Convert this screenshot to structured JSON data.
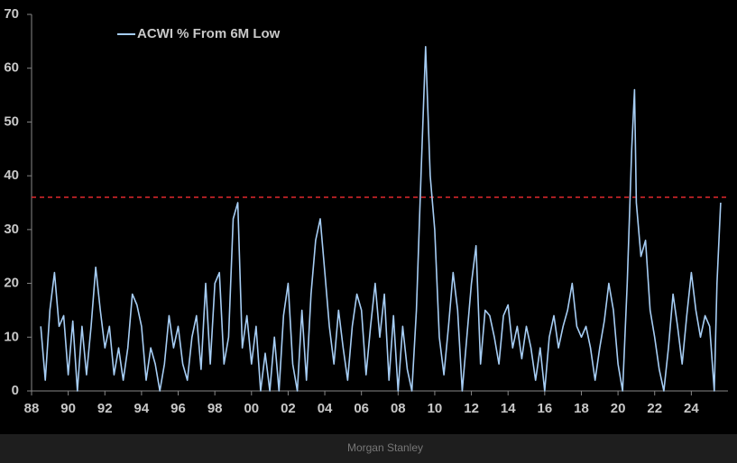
{
  "chart_data": {
    "type": "line",
    "legend": "top-left",
    "threshold": {
      "value": 36,
      "color": "#e0282e"
    },
    "footer": "Morgan Stanley",
    "x": [
      1988.5,
      1988.75,
      1989.0,
      1989.25,
      1989.5,
      1989.75,
      1990.0,
      1990.25,
      1990.5,
      1990.75,
      1991.0,
      1991.25,
      1991.5,
      1991.75,
      1992.0,
      1992.25,
      1992.5,
      1992.75,
      1993.0,
      1993.25,
      1993.5,
      1993.75,
      1994.0,
      1994.25,
      1994.5,
      1994.75,
      1995.0,
      1995.25,
      1995.5,
      1995.75,
      1996.0,
      1996.25,
      1996.5,
      1996.75,
      1997.0,
      1997.25,
      1997.5,
      1997.75,
      1998.0,
      1998.25,
      1998.5,
      1998.75,
      1999.0,
      1999.25,
      1999.5,
      1999.75,
      2000.0,
      2000.25,
      2000.5,
      2000.75,
      2001.0,
      2001.25,
      2001.5,
      2001.75,
      2002.0,
      2002.25,
      2002.5,
      2002.75,
      2003.0,
      2003.25,
      2003.5,
      2003.75,
      2004.0,
      2004.25,
      2004.5,
      2004.75,
      2005.0,
      2005.25,
      2005.5,
      2005.75,
      2006.0,
      2006.25,
      2006.5,
      2006.75,
      2007.0,
      2007.25,
      2007.5,
      2007.75,
      2008.0,
      2008.25,
      2008.5,
      2008.75,
      2009.0,
      2009.25,
      2009.5,
      2009.75,
      2010.0,
      2010.25,
      2010.5,
      2010.75,
      2011.0,
      2011.25,
      2011.5,
      2011.75,
      2012.0,
      2012.25,
      2012.5,
      2012.75,
      2013.0,
      2013.25,
      2013.5,
      2013.75,
      2014.0,
      2014.25,
      2014.5,
      2014.75,
      2015.0,
      2015.25,
      2015.5,
      2015.75,
      2016.0,
      2016.25,
      2016.5,
      2016.75,
      2017.0,
      2017.25,
      2017.5,
      2017.75,
      2018.0,
      2018.25,
      2018.5,
      2018.75,
      2019.0,
      2019.25,
      2019.5,
      2019.75,
      2020.0,
      2020.25,
      2020.5,
      2020.75,
      2020.9,
      2021.0,
      2021.25,
      2021.5,
      2021.75,
      2022.0,
      2022.25,
      2022.5,
      2022.75,
      2023.0,
      2023.25,
      2023.5,
      2023.75,
      2024.0,
      2024.25,
      2024.5,
      2024.75,
      2025.0,
      2025.25,
      2025.4,
      2025.6
    ],
    "series": [
      {
        "name": "ACWI % From 6M Low",
        "color": "#a6cdf4",
        "values": [
          12,
          2,
          15,
          22,
          12,
          14,
          3,
          13,
          0,
          12,
          3,
          12,
          23,
          15,
          8,
          12,
          3,
          8,
          2,
          8,
          18,
          16,
          12,
          2,
          8,
          5,
          0,
          5,
          14,
          8,
          12,
          5,
          2,
          10,
          14,
          4,
          20,
          5,
          20,
          22,
          5,
          10,
          32,
          35,
          8,
          14,
          5,
          12,
          0,
          7,
          0,
          10,
          0,
          14,
          20,
          5,
          0,
          15,
          2,
          18,
          28,
          32,
          22,
          12,
          5,
          15,
          8,
          2,
          12,
          18,
          15,
          3,
          12,
          20,
          10,
          18,
          2,
          14,
          0,
          12,
          4,
          0,
          15,
          40,
          64,
          40,
          30,
          10,
          3,
          12,
          22,
          15,
          0,
          10,
          20,
          27,
          5,
          15,
          14,
          10,
          5,
          14,
          16,
          8,
          12,
          6,
          12,
          8,
          2,
          8,
          0,
          10,
          14,
          8,
          12,
          15,
          20,
          12,
          10,
          12,
          8,
          2,
          8,
          13,
          20,
          15,
          5,
          0,
          20,
          45,
          56,
          35,
          25,
          28,
          15,
          10,
          4,
          0,
          8,
          18,
          12,
          5,
          14,
          22,
          15,
          10,
          14,
          12,
          0,
          20,
          35
        ]
      }
    ],
    "xlim": [
      1988,
      2026
    ],
    "xticks": [
      {
        "value": 1988,
        "label": "88"
      },
      {
        "value": 1990,
        "label": "90"
      },
      {
        "value": 1992,
        "label": "92"
      },
      {
        "value": 1994,
        "label": "94"
      },
      {
        "value": 1996,
        "label": "96"
      },
      {
        "value": 1998,
        "label": "98"
      },
      {
        "value": 2000,
        "label": "00"
      },
      {
        "value": 2002,
        "label": "02"
      },
      {
        "value": 2004,
        "label": "04"
      },
      {
        "value": 2006,
        "label": "06"
      },
      {
        "value": 2008,
        "label": "08"
      },
      {
        "value": 2010,
        "label": "10"
      },
      {
        "value": 2012,
        "label": "12"
      },
      {
        "value": 2014,
        "label": "14"
      },
      {
        "value": 2016,
        "label": "16"
      },
      {
        "value": 2018,
        "label": "18"
      },
      {
        "value": 2020,
        "label": "20"
      },
      {
        "value": 2022,
        "label": "22"
      },
      {
        "value": 2024,
        "label": "24"
      }
    ],
    "ylim": [
      0,
      70
    ],
    "yticks": [
      0,
      10,
      20,
      30,
      40,
      50,
      60,
      70
    ]
  }
}
